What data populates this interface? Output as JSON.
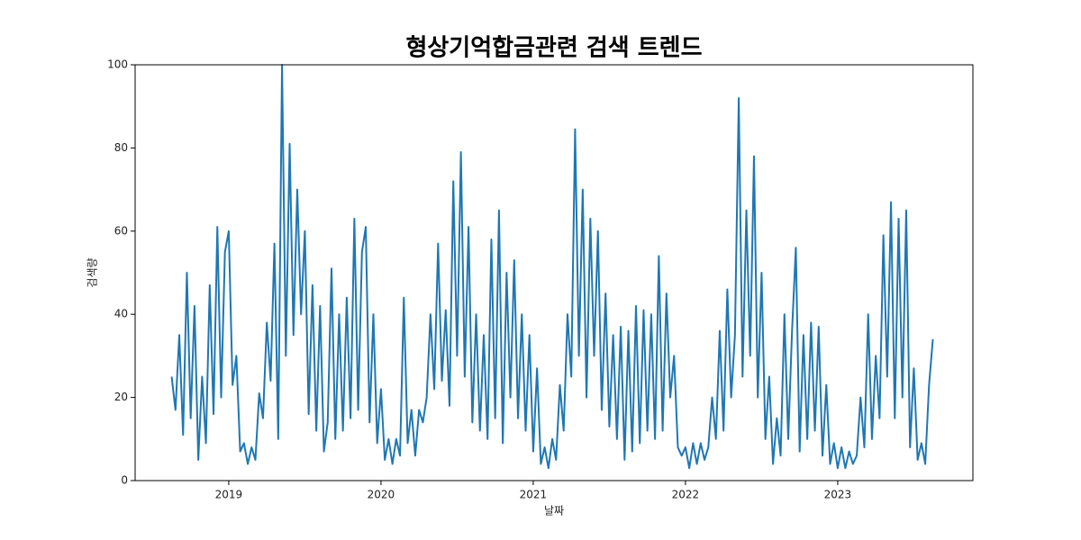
{
  "chart_data": {
    "type": "line",
    "title": "형상기억합금관련 검색 트렌드",
    "x_label": "날짜",
    "y_label": "검색량",
    "xlim": [
      2018.385,
      2023.888
    ],
    "xticks": [
      2019,
      2020,
      2021,
      2022,
      2023
    ],
    "ylim": [
      0,
      100
    ],
    "yticks": [
      0,
      20,
      40,
      60,
      80,
      100
    ],
    "color": "#1f77b4",
    "x": [
      2018.625,
      2018.65,
      2018.675,
      2018.7,
      2018.725,
      2018.75,
      2018.775,
      2018.8,
      2018.825,
      2018.85,
      2018.875,
      2018.9,
      2018.925,
      2018.95,
      2018.975,
      2019.0,
      2019.025,
      2019.05,
      2019.075,
      2019.1,
      2019.125,
      2019.15,
      2019.175,
      2019.2,
      2019.225,
      2019.25,
      2019.275,
      2019.3,
      2019.325,
      2019.35,
      2019.375,
      2019.4,
      2019.425,
      2019.45,
      2019.475,
      2019.5,
      2019.525,
      2019.55,
      2019.575,
      2019.6,
      2019.625,
      2019.65,
      2019.675,
      2019.7,
      2019.725,
      2019.75,
      2019.775,
      2019.8,
      2019.825,
      2019.85,
      2019.875,
      2019.9,
      2019.925,
      2019.95,
      2019.975,
      2020.0,
      2020.025,
      2020.05,
      2020.075,
      2020.1,
      2020.125,
      2020.15,
      2020.175,
      2020.2,
      2020.225,
      2020.25,
      2020.275,
      2020.3,
      2020.325,
      2020.35,
      2020.375,
      2020.4,
      2020.425,
      2020.45,
      2020.475,
      2020.5,
      2020.525,
      2020.55,
      2020.575,
      2020.6,
      2020.625,
      2020.65,
      2020.675,
      2020.7,
      2020.725,
      2020.75,
      2020.775,
      2020.8,
      2020.825,
      2020.85,
      2020.875,
      2020.9,
      2020.925,
      2020.95,
      2020.975,
      2021.0,
      2021.025,
      2021.05,
      2021.075,
      2021.1,
      2021.125,
      2021.15,
      2021.175,
      2021.2,
      2021.225,
      2021.25,
      2021.275,
      2021.3,
      2021.325,
      2021.35,
      2021.375,
      2021.4,
      2021.425,
      2021.45,
      2021.475,
      2021.5,
      2021.525,
      2021.55,
      2021.575,
      2021.6,
      2021.625,
      2021.65,
      2021.675,
      2021.7,
      2021.725,
      2021.75,
      2021.775,
      2021.8,
      2021.825,
      2021.85,
      2021.875,
      2021.9,
      2021.925,
      2021.95,
      2021.975,
      2022.0,
      2022.025,
      2022.05,
      2022.075,
      2022.1,
      2022.125,
      2022.15,
      2022.175,
      2022.2,
      2022.225,
      2022.25,
      2022.275,
      2022.3,
      2022.325,
      2022.35,
      2022.375,
      2022.4,
      2022.425,
      2022.45,
      2022.475,
      2022.5,
      2022.525,
      2022.55,
      2022.575,
      2022.6,
      2022.625,
      2022.65,
      2022.675,
      2022.7,
      2022.725,
      2022.75,
      2022.775,
      2022.8,
      2022.825,
      2022.85,
      2022.875,
      2022.9,
      2022.925,
      2022.95,
      2022.975,
      2023.0,
      2023.025,
      2023.05,
      2023.075,
      2023.1,
      2023.125,
      2023.15,
      2023.175,
      2023.2,
      2023.225,
      2023.25,
      2023.275,
      2023.3,
      2023.325,
      2023.35,
      2023.375,
      2023.4,
      2023.425,
      2023.45,
      2023.475,
      2023.5,
      2023.525,
      2023.55,
      2023.575,
      2023.6,
      2023.625
    ],
    "values": [
      25,
      17,
      35,
      11,
      50,
      15,
      42,
      5,
      25,
      9,
      47,
      16,
      61,
      20,
      55,
      60,
      23,
      30,
      7,
      9,
      4,
      8,
      5,
      21,
      15,
      38,
      24,
      57,
      10,
      100,
      30,
      81,
      35,
      70,
      40,
      60,
      16,
      47,
      12,
      42,
      7,
      14,
      51,
      10,
      40,
      12,
      44,
      15,
      63,
      17,
      55,
      61,
      14,
      40,
      9,
      22,
      5,
      10,
      4,
      10,
      6,
      44,
      9,
      17,
      6,
      17,
      14,
      20,
      40,
      22,
      57,
      24,
      41,
      18,
      72,
      30,
      79,
      25,
      61,
      14,
      40,
      12,
      35,
      10,
      58,
      15,
      65,
      9,
      50,
      20,
      53,
      15,
      40,
      12,
      35,
      7,
      27,
      4,
      8,
      3,
      10,
      5,
      23,
      12,
      40,
      25,
      84.5,
      30,
      70,
      20,
      63,
      30,
      60,
      17,
      45,
      13,
      35,
      10,
      37,
      5,
      36,
      7,
      42,
      9,
      41,
      12,
      40,
      10,
      54,
      12,
      45,
      20,
      30,
      8,
      6,
      8,
      3,
      9,
      4,
      9,
      5,
      8,
      20,
      10,
      36,
      12,
      46,
      20,
      35,
      92,
      25,
      65,
      30,
      78,
      20,
      50,
      10,
      25,
      4,
      15,
      6,
      40,
      10,
      36,
      56,
      7,
      35,
      10,
      38,
      12,
      37,
      6,
      23,
      4,
      9,
      3,
      8,
      3,
      7,
      4,
      6,
      20,
      8,
      40,
      10,
      30,
      15,
      59,
      25,
      67,
      15,
      63,
      20,
      65,
      8,
      27,
      5,
      9,
      4,
      23,
      34
    ]
  }
}
